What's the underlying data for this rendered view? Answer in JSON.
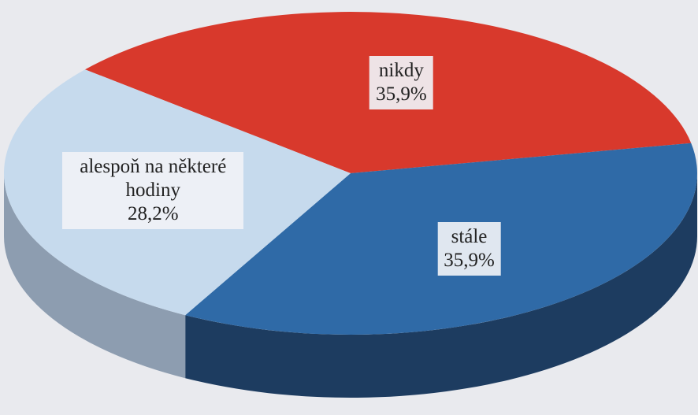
{
  "chart_data": {
    "type": "pie3d",
    "categories": [
      "nikdy",
      "stále",
      "alespoň na některé hodiny"
    ],
    "values": [
      35.9,
      35.9,
      28.2
    ],
    "value_labels": [
      "35,9%",
      "35,9%",
      "28,2%"
    ],
    "colors": [
      "#d8392c",
      "#2f6aa7",
      "#c6daed"
    ],
    "side_colors": [
      "#8f2219",
      "#1d3c60",
      "#8d9db0"
    ]
  }
}
